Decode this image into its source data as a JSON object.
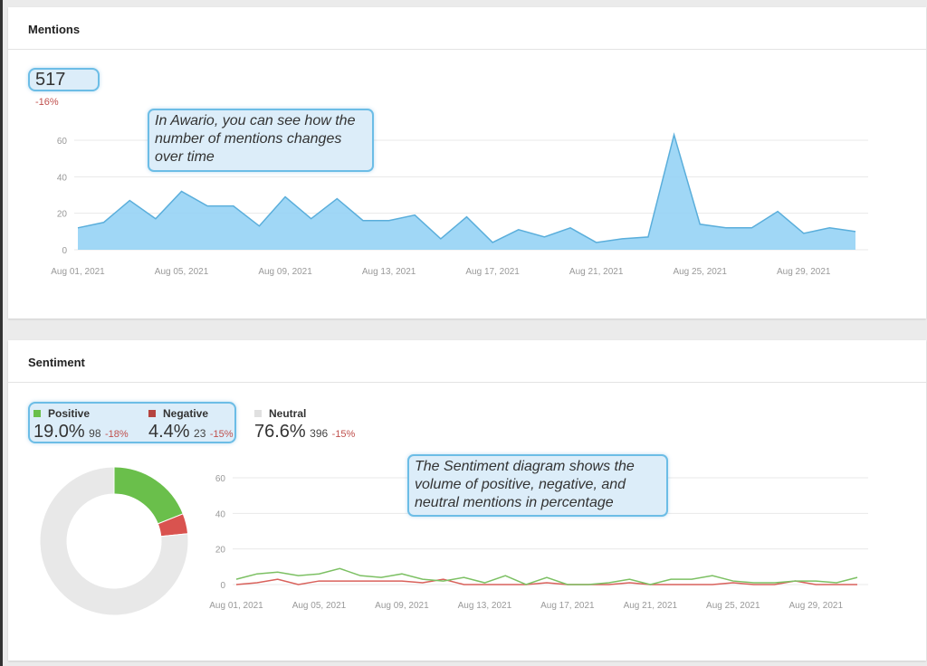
{
  "mentions": {
    "title": "Mentions",
    "total": "517",
    "change": "-16%",
    "callout": "In Awario, you can see how the number of mentions changes over time"
  },
  "sentiment": {
    "title": "Sentiment",
    "positive": {
      "label": "Positive",
      "percent": "19.0%",
      "count": "98",
      "change": "-18%",
      "color": "#6abf4b"
    },
    "negative": {
      "label": "Negative",
      "percent": "4.4%",
      "count": "23",
      "change": "-15%",
      "color": "#c9453f"
    },
    "neutral": {
      "label": "Neutral",
      "percent": "76.6%",
      "count": "396",
      "change": "-15%",
      "color": "#e6e6e6"
    },
    "callout": "The Sentiment diagram shows the volume of positive, negative, and neutral mentions in percentage"
  },
  "chart_data": [
    {
      "type": "area",
      "x_ticks": [
        "Aug 01, 2021",
        "Aug 05, 2021",
        "Aug 09, 2021",
        "Aug 13, 2021",
        "Aug 17, 2021",
        "Aug 21, 2021",
        "Aug 25, 2021",
        "Aug 29, 2021"
      ],
      "y_ticks": [
        0,
        20,
        40,
        60
      ],
      "ylim": [
        0,
        60
      ],
      "grid": true,
      "x_start": "2021-08-01",
      "values": [
        12,
        15,
        27,
        17,
        32,
        24,
        24,
        13,
        29,
        17,
        28,
        16,
        16,
        19,
        6,
        18,
        4,
        11,
        7,
        12,
        4,
        6,
        7,
        63,
        14,
        12,
        12,
        21,
        9,
        12,
        10
      ],
      "color": "#8fd0f5"
    },
    {
      "type": "line",
      "x_ticks": [
        "Aug 01, 2021",
        "Aug 05, 2021",
        "Aug 09, 2021",
        "Aug 13, 2021",
        "Aug 17, 2021",
        "Aug 21, 2021",
        "Aug 25, 2021",
        "Aug 29, 2021"
      ],
      "y_ticks": [
        0,
        20,
        40,
        60
      ],
      "ylim": [
        0,
        60
      ],
      "grid": true,
      "series": [
        {
          "name": "Positive",
          "color": "#7cc063",
          "values": [
            3,
            6,
            7,
            5,
            6,
            9,
            5,
            4,
            6,
            3,
            2,
            4,
            1,
            5,
            0,
            4,
            0,
            0,
            1,
            3,
            0,
            3,
            3,
            5,
            2,
            1,
            1,
            2,
            2,
            1,
            4
          ]
        },
        {
          "name": "Negative",
          "color": "#d9615b",
          "values": [
            0,
            1,
            3,
            0,
            2,
            2,
            2,
            2,
            2,
            1,
            3,
            0,
            0,
            0,
            0,
            1,
            0,
            0,
            0,
            1,
            0,
            0,
            0,
            0,
            1,
            0,
            0,
            2,
            0,
            0,
            0
          ]
        }
      ]
    },
    {
      "type": "pie",
      "donut": true,
      "slices": [
        {
          "name": "Positive",
          "value": 19.0,
          "color": "#6abf4b"
        },
        {
          "name": "Negative",
          "value": 4.4,
          "color": "#d9534f"
        },
        {
          "name": "Neutral",
          "value": 76.6,
          "color": "#e8e8e8"
        }
      ]
    }
  ]
}
